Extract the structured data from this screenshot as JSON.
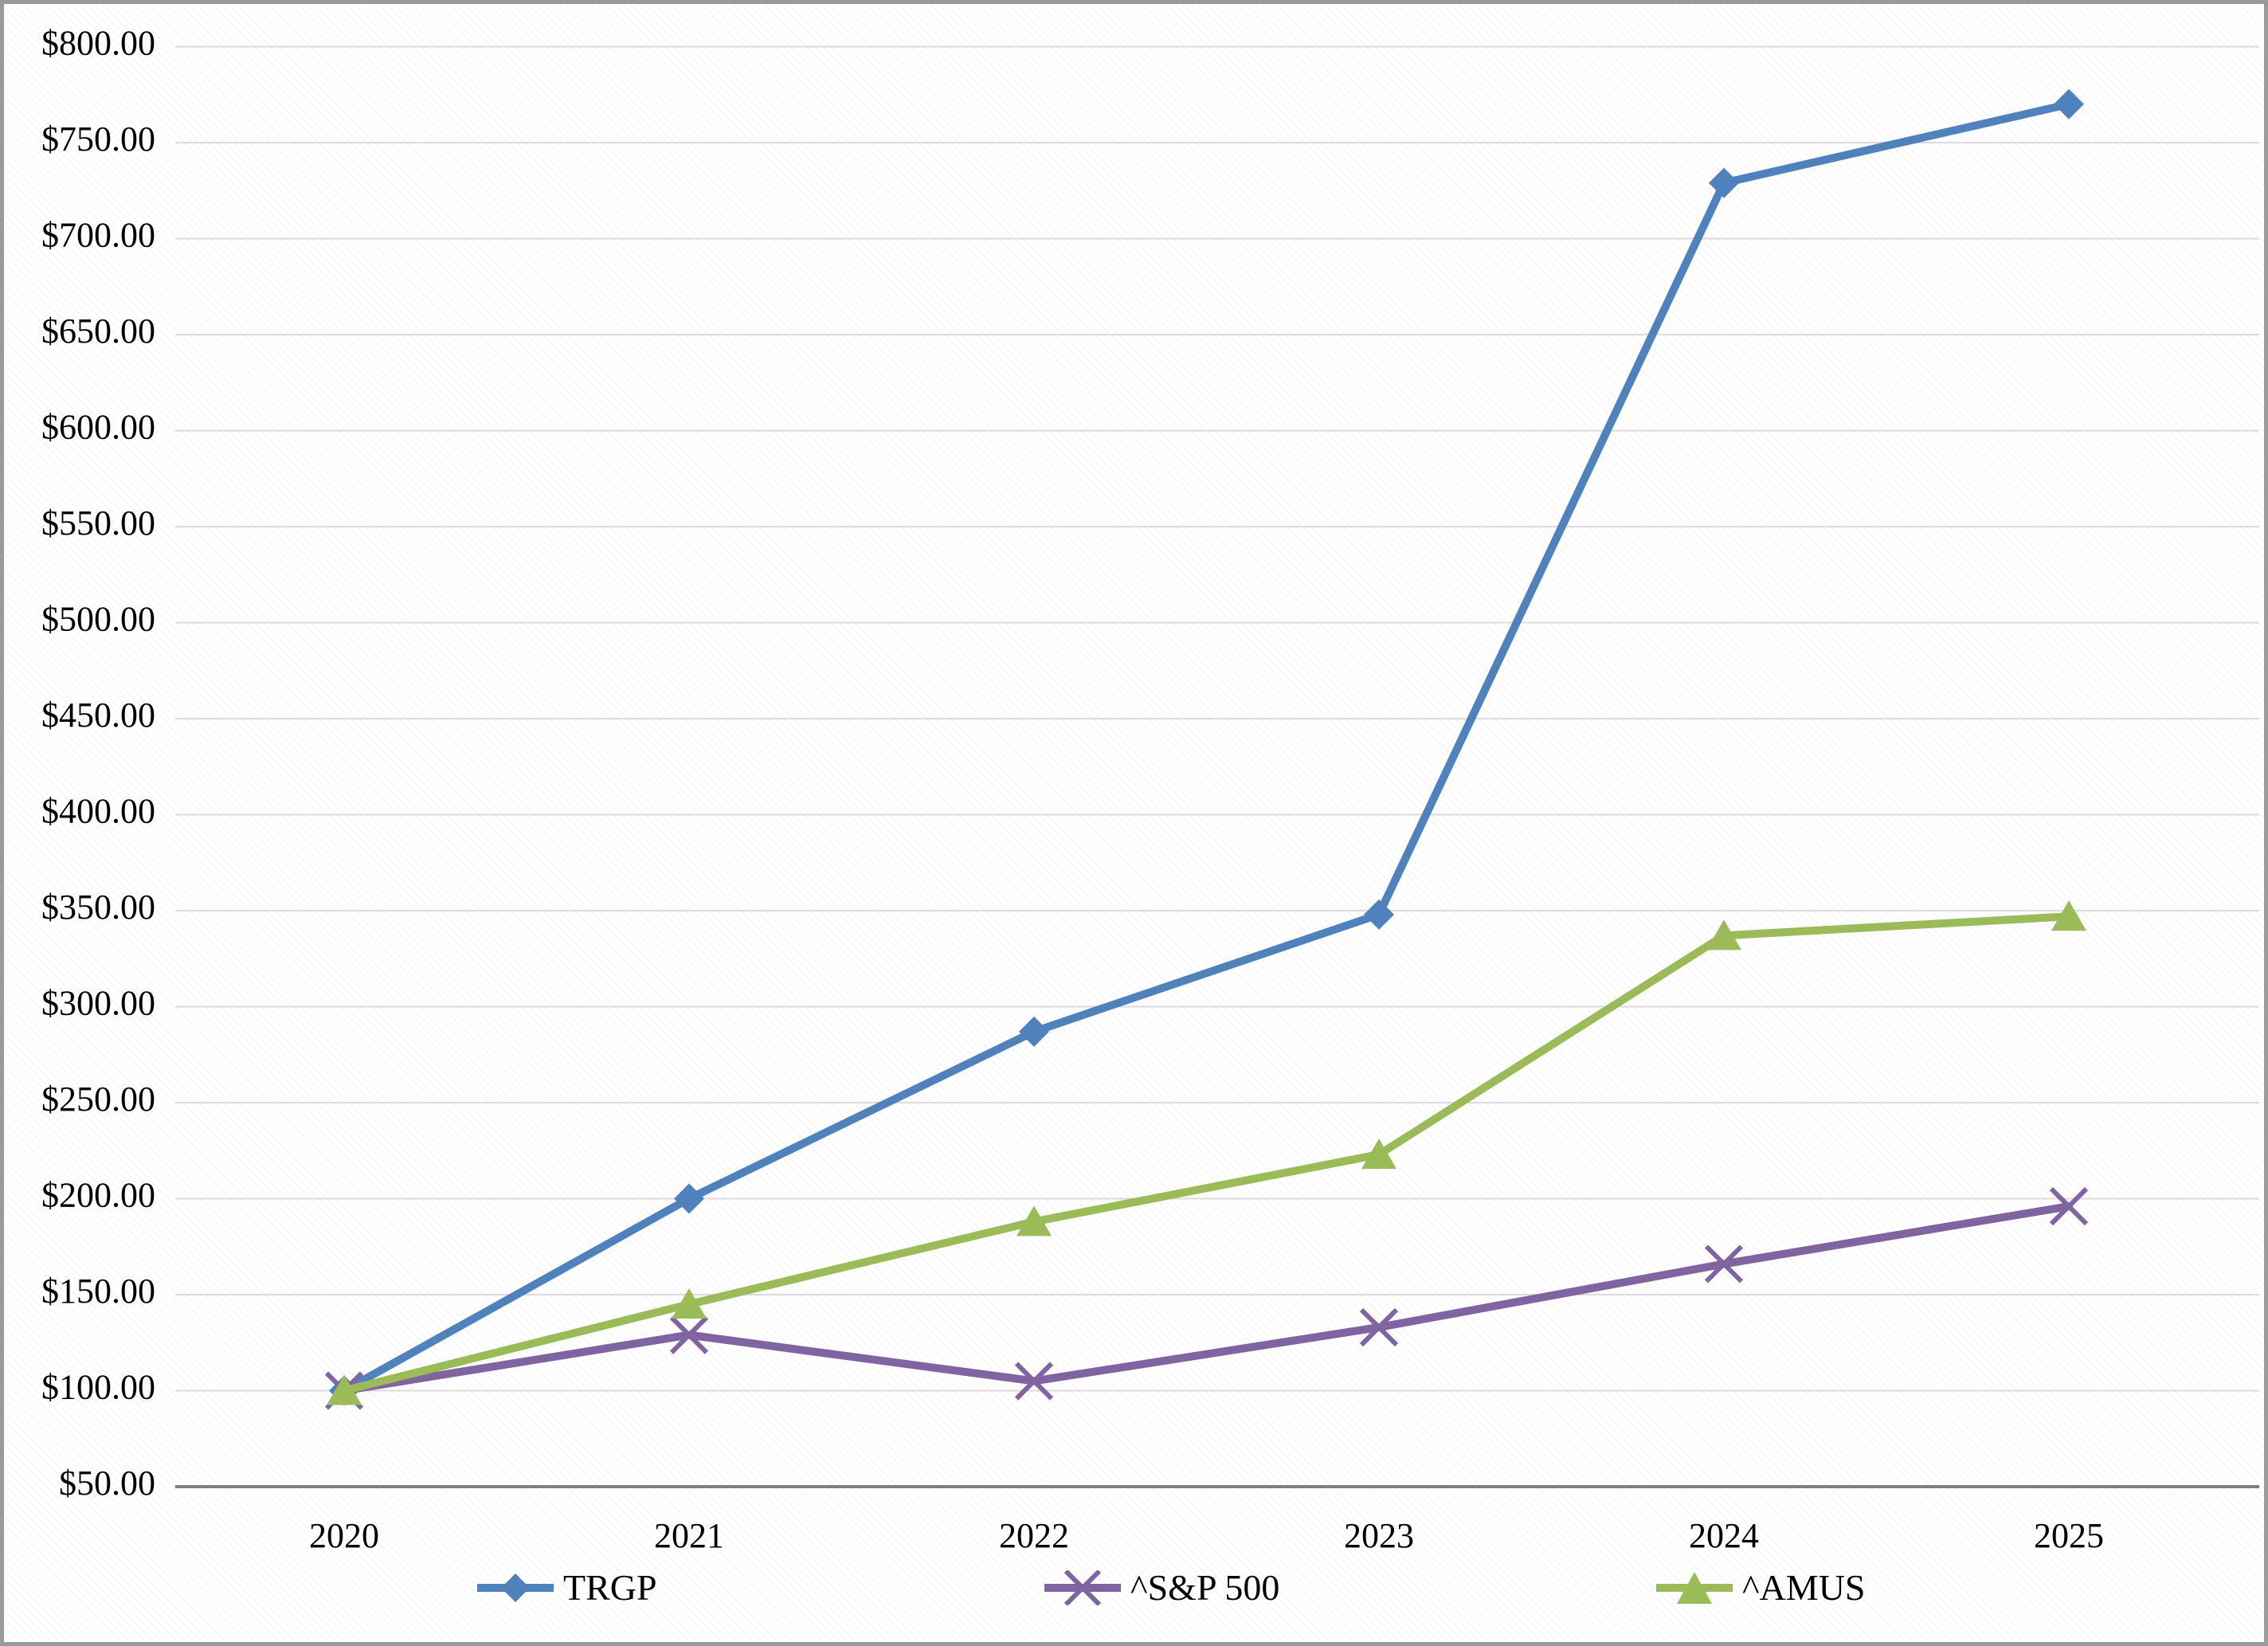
{
  "chart_data": {
    "type": "line",
    "categories": [
      "2020",
      "2021",
      "2022",
      "2023",
      "2024",
      "2025"
    ],
    "series": [
      {
        "name": "TRGP",
        "color": "#4F81BD",
        "marker": "diamond",
        "values": [
          100,
          200,
          287,
          348,
          729,
          770
        ]
      },
      {
        "name": "^S&P 500",
        "color": "#8064A2",
        "marker": "x",
        "values": [
          100,
          129,
          105,
          133,
          166,
          196
        ]
      },
      {
        "name": "^AMUS",
        "color": "#9BBB59",
        "marker": "triangle",
        "values": [
          100,
          145,
          188,
          223,
          337,
          347
        ]
      }
    ],
    "ylim": [
      50,
      800
    ],
    "y_tick_step": 50,
    "y_tick_labels": [
      "$50.00",
      "$100.00",
      "$150.00",
      "$200.00",
      "$250.00",
      "$300.00",
      "$350.00",
      "$400.00",
      "$450.00",
      "$500.00",
      "$550.00",
      "$600.00",
      "$650.00",
      "$700.00",
      "$750.00",
      "$800.00"
    ],
    "title": "",
    "xlabel": "",
    "ylabel": "",
    "grid": true,
    "legend_position": "bottom",
    "colors": {
      "gridline": "#DFD8DE",
      "axis_line": "#7F7F7F",
      "text": "#000000",
      "background": "#FFFFFF",
      "frame_border": "#9A9A9A"
    }
  }
}
